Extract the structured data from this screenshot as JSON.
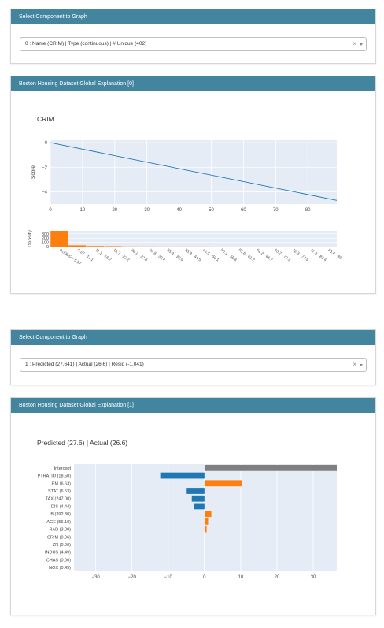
{
  "panel1": {
    "header": "Select Component to Graph",
    "value": "0 : Name (CRIM) | Type (continuous) | # Unique (402)",
    "clear_glyph": "×"
  },
  "graph1": {
    "header": "Boston Housing Dataset Global Explanation [0]"
  },
  "panel2": {
    "header": "Select Component to Graph",
    "value": "1 : Predicted (27.641) | Actual (26.6) | Resid (-1.041)",
    "clear_glyph": "×"
  },
  "graph2": {
    "header": "Boston Housing Dataset Global Explanation [1]"
  },
  "colors": {
    "header_bg": "#43849f",
    "plot_bg": "#e5ecf6",
    "line": "#1f77b4",
    "blue": "#1f77b4",
    "orange": "#ff7f0e",
    "gray": "#7f7f7f"
  },
  "chart_data": [
    {
      "type": "line",
      "title": "CRIM",
      "ylabel": "Score",
      "x": [
        0,
        89
      ],
      "y": [
        0,
        -4.7
      ],
      "xlim": [
        0,
        89
      ],
      "ylim": [
        -5,
        0.2
      ],
      "xticks": [
        0,
        10,
        20,
        30,
        40,
        50,
        60,
        70,
        80
      ],
      "yticks": [
        0,
        -2,
        -4
      ],
      "ytick_labels": [
        "0",
        "−2",
        "−4"
      ],
      "grid": true
    },
    {
      "type": "bar",
      "ylabel": "Density",
      "categories": [
        "0.00632 - 5.57",
        "5.57 - 11.1",
        "11.1 - 16.7",
        "16.7 - 22.2",
        "22.2 - 27.8",
        "27.8 - 33.4",
        "33.4 - 38.9",
        "38.9 - 44.5",
        "44.5 - 50.1",
        "50.1 - 55.6",
        "55.6 - 61.2",
        "61.2 - 66.7",
        "66.7 - 72.3",
        "72.3 - 77.9",
        "77.9 - 83.4",
        "83.4 - 89"
      ],
      "values": [
        370,
        30,
        14,
        10,
        4,
        3,
        2,
        2,
        2,
        1,
        1,
        1,
        1,
        1,
        1,
        1
      ],
      "ylim": [
        0,
        370
      ],
      "yticks": [
        0,
        100,
        200,
        300
      ],
      "grid": true
    },
    {
      "type": "bar",
      "orientation": "horizontal",
      "title": "Predicted (27.6) | Actual (26.6)",
      "categories": [
        "Intercept",
        "PTRATIO (18.50)",
        "RM (6.63)",
        "LSTAT (6.53)",
        "TAX (247.00)",
        "DIS (4.44)",
        "B (392.30)",
        "AGE (56.10)",
        "RAD (3.00)",
        "CRIM (0.06)",
        "ZN (0.00)",
        "INDUS (4.49)",
        "CHAS (0.00)",
        "NOX (0.45)"
      ],
      "values": [
        37,
        -12.2,
        10.4,
        -4.9,
        -3.5,
        -3.0,
        1.9,
        1.0,
        0.6,
        0,
        0,
        0,
        0,
        0
      ],
      "bar_colors": [
        "#7f7f7f",
        "#1f77b4",
        "#ff7f0e",
        "#1f77b4",
        "#1f77b4",
        "#1f77b4",
        "#ff7f0e",
        "#ff7f0e",
        "#ff7f0e",
        "#ff7f0e",
        "#ff7f0e",
        "#ff7f0e",
        "#ff7f0e",
        "#ff7f0e"
      ],
      "xlim": [
        -36,
        36.5
      ],
      "xticks": [
        -30,
        -20,
        -10,
        0,
        10,
        20,
        30
      ],
      "xtick_labels": [
        "−30",
        "−20",
        "−10",
        "0",
        "10",
        "20",
        "30"
      ],
      "grid": true
    }
  ]
}
